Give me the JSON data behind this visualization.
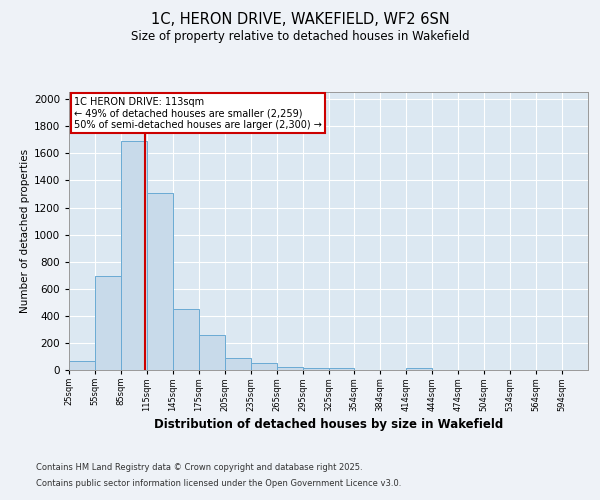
{
  "title_line1": "1C, HERON DRIVE, WAKEFIELD, WF2 6SN",
  "title_line2": "Size of property relative to detached houses in Wakefield",
  "xlabel": "Distribution of detached houses by size in Wakefield",
  "ylabel": "Number of detached properties",
  "annotation_line1": "1C HERON DRIVE: 113sqm",
  "annotation_line2": "← 49% of detached houses are smaller (2,259)",
  "annotation_line3": "50% of semi-detached houses are larger (2,300) →",
  "property_size": 113,
  "red_line_x": 113,
  "bar_color": "#c8daea",
  "bar_edgecolor": "#6aaad4",
  "red_line_color": "#cc0000",
  "footer_line1": "Contains HM Land Registry data © Crown copyright and database right 2025.",
  "footer_line2": "Contains public sector information licensed under the Open Government Licence v3.0.",
  "bins": [
    25,
    55,
    85,
    115,
    145,
    175,
    205,
    235,
    265,
    295,
    325,
    354,
    384,
    414,
    444,
    474,
    504,
    534,
    564,
    594,
    624
  ],
  "counts": [
    67,
    692,
    1693,
    1310,
    452,
    259,
    91,
    55,
    25,
    17,
    13,
    0,
    0,
    14,
    0,
    0,
    0,
    0,
    0,
    0
  ],
  "ylim": [
    0,
    2050
  ],
  "yticks": [
    0,
    200,
    400,
    600,
    800,
    1000,
    1200,
    1400,
    1600,
    1800,
    2000
  ],
  "background_color": "#eef2f7",
  "plot_bg_color": "#dce8f2"
}
